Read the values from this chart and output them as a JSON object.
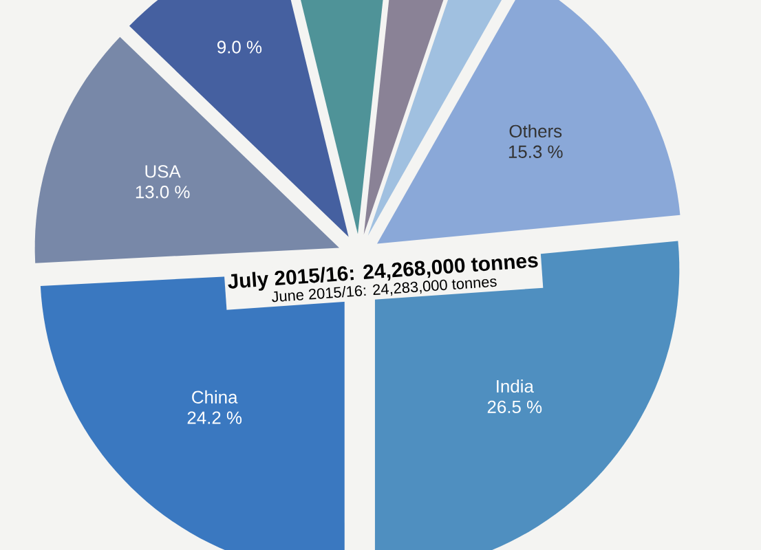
{
  "chart_data": {
    "type": "pie",
    "title": "July 2015/16: 24,268,000 tonnes",
    "subtitle": "June 2015/16: 24,283,000 tonnes",
    "categories": [
      null,
      null,
      null,
      null,
      "Others",
      "India",
      "China",
      "USA"
    ],
    "values": [
      9.0,
      5.5,
      3.5,
      3.0,
      15.3,
      26.5,
      24.2,
      13.0
    ],
    "value_labels": [
      "9.0 %",
      null,
      null,
      null,
      "15.3 %",
      "26.5 %",
      "24.2 %",
      "13.0 %"
    ],
    "colors": [
      "#4560a0",
      "#4f9398",
      "#8a8296",
      "#a0c0e0",
      "#8aa8d8",
      "#4f8fc0",
      "#3a78c0",
      "#7888a8"
    ]
  }
}
